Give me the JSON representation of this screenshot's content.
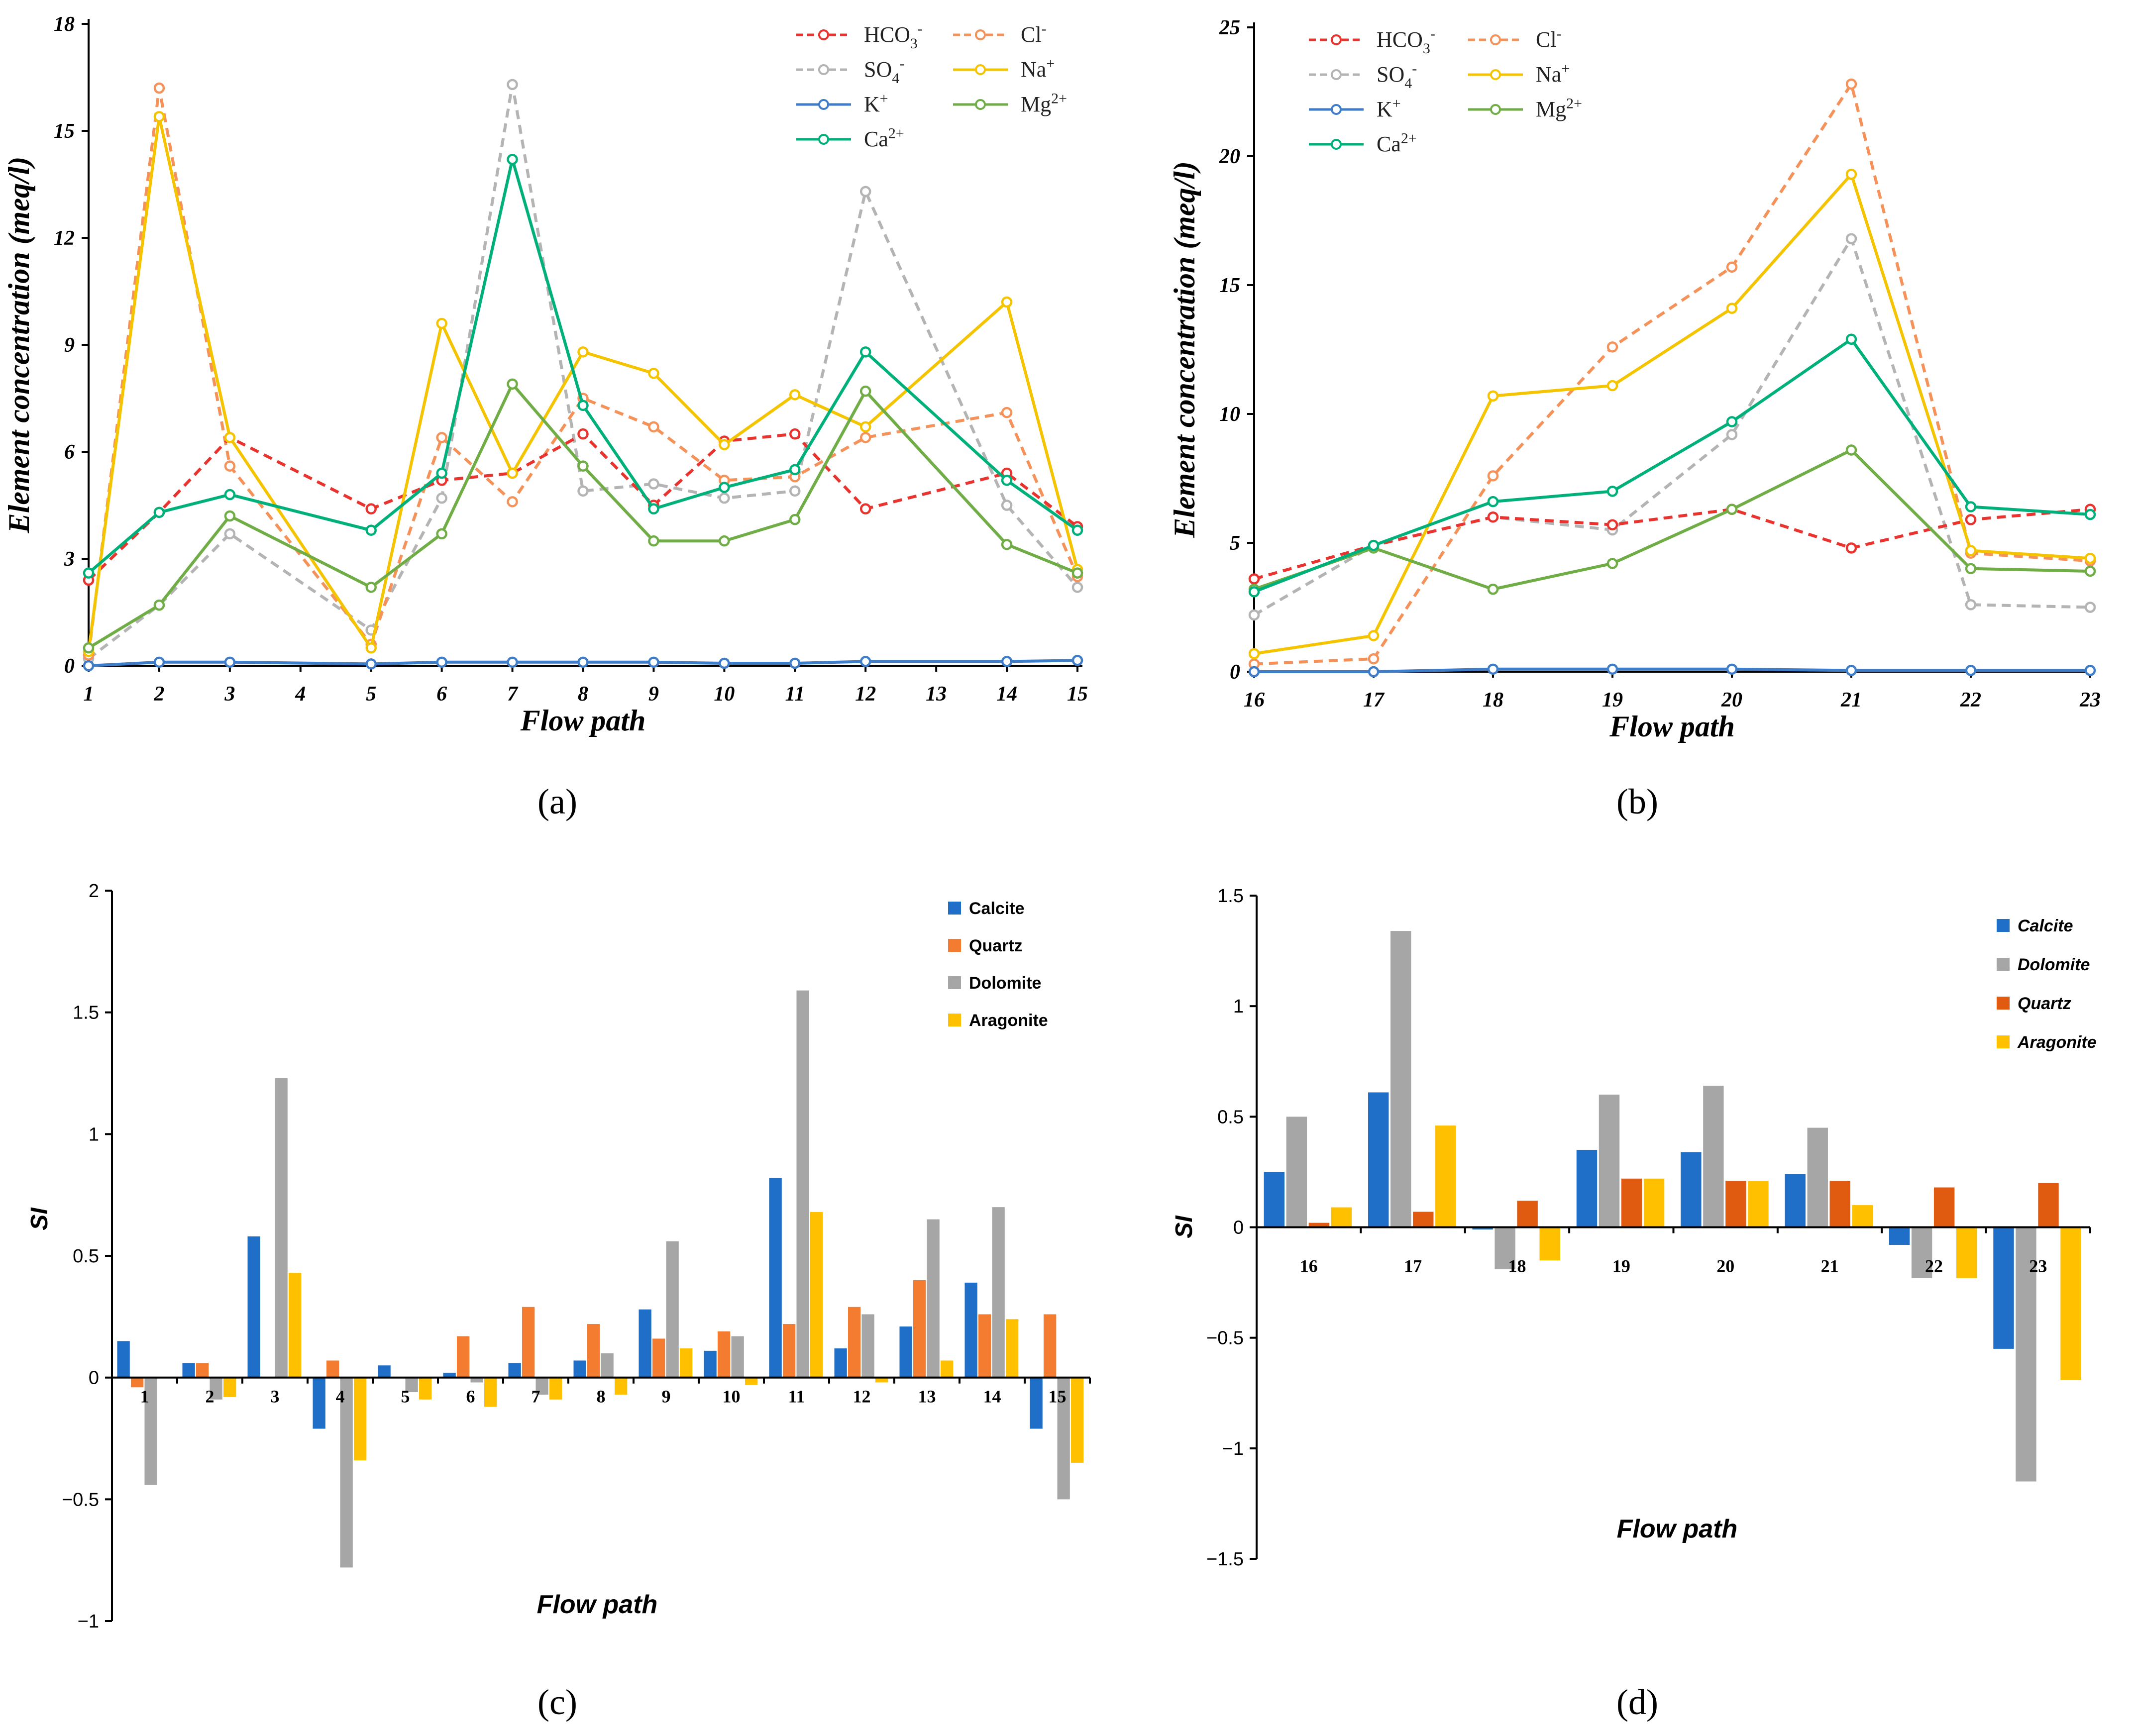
{
  "chart_data": [
    {
      "type": "line",
      "panel": "(a)",
      "xlabel": "Flow path",
      "ylabel": "Element concentration (meq/l)",
      "x": [
        1,
        2,
        3,
        5,
        6,
        7,
        8,
        9,
        10,
        11,
        12,
        14,
        15
      ],
      "x_ticks": [
        "1",
        "2",
        "3",
        "4",
        "5",
        "6",
        "7",
        "8",
        "9",
        "10",
        "11",
        "12",
        "13",
        "14",
        "15"
      ],
      "ylim": [
        0,
        18
      ],
      "y_ticks": [
        "0",
        "3",
        "6",
        "9",
        "12",
        "15",
        "18"
      ],
      "legend_position": "top-right",
      "series": [
        {
          "name": "HCO3-",
          "legend_base": "HCO",
          "legend_sub": "3",
          "legend_sup": "-",
          "color": "#e8332e",
          "dashed": true,
          "values": [
            2.4,
            4.3,
            6.4,
            4.4,
            5.2,
            5.4,
            6.5,
            4.5,
            6.3,
            6.5,
            4.4,
            5.4,
            3.9
          ]
        },
        {
          "name": "Cl-",
          "legend_base": "Cl",
          "legend_sub": "",
          "legend_sup": "-",
          "color": "#f4925a",
          "dashed": true,
          "values": [
            0.3,
            16.2,
            5.6,
            0.6,
            6.4,
            4.6,
            7.5,
            6.7,
            5.2,
            5.3,
            6.4,
            7.1,
            2.5
          ]
        },
        {
          "name": "SO4-",
          "legend_base": "SO",
          "legend_sub": "4",
          "legend_sup": "-",
          "color": "#b4b4b4",
          "dashed": true,
          "values": [
            0.2,
            1.7,
            3.7,
            1.0,
            4.7,
            16.3,
            4.9,
            5.1,
            4.7,
            4.9,
            13.3,
            4.5,
            2.2
          ]
        },
        {
          "name": "Na+",
          "legend_base": "Na",
          "legend_sub": "",
          "legend_sup": "+",
          "color": "#f5c400",
          "dashed": false,
          "values": [
            0.4,
            15.4,
            6.4,
            0.5,
            9.6,
            5.4,
            8.8,
            8.2,
            6.2,
            7.6,
            6.7,
            10.2,
            2.7
          ]
        },
        {
          "name": "K+",
          "legend_base": "K",
          "legend_sub": "",
          "legend_sup": "+",
          "color": "#3f7dc8",
          "dashed": false,
          "values": [
            0.0,
            0.1,
            0.1,
            0.05,
            0.1,
            0.1,
            0.1,
            0.1,
            0.07,
            0.07,
            0.12,
            0.12,
            0.15
          ]
        },
        {
          "name": "Mg2+",
          "legend_base": "Mg",
          "legend_sub": "",
          "legend_sup": "2+",
          "color": "#70ad47",
          "dashed": false,
          "values": [
            0.5,
            1.7,
            4.2,
            2.2,
            3.7,
            7.9,
            5.6,
            3.5,
            3.5,
            4.1,
            7.7,
            3.4,
            2.6
          ]
        },
        {
          "name": "Ca2+",
          "legend_base": "Ca",
          "legend_sub": "",
          "legend_sup": "2+",
          "color": "#00b07a",
          "dashed": false,
          "values": [
            2.6,
            4.3,
            4.8,
            3.8,
            5.4,
            14.2,
            7.3,
            4.4,
            5.0,
            5.5,
            8.8,
            5.2,
            3.8
          ]
        }
      ]
    },
    {
      "type": "line",
      "panel": "(b)",
      "xlabel": "Flow path",
      "ylabel": "Element concentration (meq/l)",
      "x": [
        16,
        17,
        18,
        19,
        20,
        21,
        22,
        23
      ],
      "x_ticks": [
        "16",
        "17",
        "18",
        "19",
        "20",
        "21",
        "22",
        "23"
      ],
      "ylim": [
        0,
        25
      ],
      "y_ticks": [
        "0",
        "5",
        "10",
        "15",
        "20",
        "25"
      ],
      "legend_position": "top-left",
      "series": [
        {
          "name": "HCO3-",
          "legend_base": "HCO",
          "legend_sub": "3",
          "legend_sup": "-",
          "color": "#e8332e",
          "dashed": true,
          "values": [
            3.6,
            4.9,
            6.0,
            5.7,
            6.3,
            4.8,
            5.9,
            6.3
          ]
        },
        {
          "name": "Cl-",
          "legend_base": "Cl",
          "legend_sub": "",
          "legend_sup": "-",
          "color": "#f4925a",
          "dashed": true,
          "values": [
            0.3,
            0.5,
            7.6,
            12.6,
            15.7,
            22.8,
            4.6,
            4.3
          ]
        },
        {
          "name": "SO4-",
          "legend_base": "SO",
          "legend_sub": "4",
          "legend_sup": "-",
          "color": "#b4b4b4",
          "dashed": true,
          "values": [
            2.2,
            4.9,
            6.0,
            5.5,
            9.2,
            16.8,
            2.6,
            2.5
          ]
        },
        {
          "name": "Na+",
          "legend_base": "Na",
          "legend_sub": "",
          "legend_sup": "+",
          "color": "#f5c400",
          "dashed": false,
          "values": [
            0.7,
            1.4,
            10.7,
            11.1,
            14.1,
            19.3,
            4.7,
            4.4
          ]
        },
        {
          "name": "K+",
          "legend_base": "K",
          "legend_sub": "",
          "legend_sup": "+",
          "color": "#3f7dc8",
          "dashed": false,
          "values": [
            0.0,
            0.0,
            0.1,
            0.1,
            0.1,
            0.05,
            0.05,
            0.05
          ]
        },
        {
          "name": "Mg2+",
          "legend_base": "Mg",
          "legend_sub": "",
          "legend_sup": "2+",
          "color": "#70ad47",
          "dashed": false,
          "values": [
            3.2,
            4.8,
            3.2,
            4.2,
            6.3,
            8.6,
            4.0,
            3.9
          ]
        },
        {
          "name": "Ca2+",
          "legend_base": "Ca",
          "legend_sub": "",
          "legend_sup": "2+",
          "color": "#00b07a",
          "dashed": false,
          "values": [
            3.1,
            4.9,
            6.6,
            7.0,
            9.7,
            12.9,
            6.4,
            6.1
          ]
        }
      ]
    },
    {
      "type": "bar",
      "panel": "(c)",
      "xlabel": "Flow path",
      "ylabel": "SI",
      "categories": [
        "1",
        "2",
        "3",
        "4",
        "5",
        "6",
        "7",
        "8",
        "9",
        "10",
        "11",
        "12",
        "13",
        "14",
        "15"
      ],
      "ylim": [
        -1,
        2
      ],
      "y_ticks": [
        "−1",
        "−0.5",
        "0",
        "0.5",
        "1",
        "1.5",
        "2"
      ],
      "legend_position": "top-right",
      "series": [
        {
          "name": "Calcite",
          "color": "#1f6fc9",
          "values": [
            0.15,
            0.06,
            0.58,
            -0.21,
            0.05,
            0.02,
            0.06,
            0.07,
            0.28,
            0.11,
            0.82,
            0.12,
            0.21,
            0.39,
            -0.21
          ]
        },
        {
          "name": "Quartz",
          "color": "#f47c30",
          "values": [
            -0.04,
            0.06,
            0.0,
            0.07,
            0.0,
            0.17,
            0.29,
            0.22,
            0.16,
            0.19,
            0.22,
            0.29,
            0.4,
            0.26,
            0.26
          ]
        },
        {
          "name": "Dolomite",
          "color": "#a6a6a6",
          "values": [
            -0.44,
            -0.09,
            1.23,
            -0.78,
            -0.06,
            -0.02,
            -0.07,
            0.1,
            0.56,
            0.17,
            1.59,
            0.26,
            0.65,
            0.7,
            -0.5
          ]
        },
        {
          "name": "Aragonite",
          "color": "#ffc000",
          "values": [
            0.0,
            -0.08,
            0.43,
            -0.34,
            -0.09,
            -0.12,
            -0.09,
            -0.07,
            0.12,
            -0.03,
            0.68,
            -0.02,
            0.07,
            0.24,
            -0.35
          ]
        }
      ]
    },
    {
      "type": "bar",
      "panel": "(d)",
      "xlabel": "Flow path",
      "ylabel": "SI",
      "categories": [
        "16",
        "17",
        "18",
        "19",
        "20",
        "21",
        "22",
        "23"
      ],
      "ylim": [
        -1.5,
        1.5
      ],
      "y_ticks": [
        "−1.5",
        "−1",
        "−0.5",
        "0",
        "0.5",
        "1",
        "1.5"
      ],
      "legend_position": "top-right",
      "series": [
        {
          "name": "Calcite",
          "color": "#1f6fc9",
          "values": [
            0.25,
            0.61,
            -0.01,
            0.35,
            0.34,
            0.24,
            -0.08,
            -0.55
          ]
        },
        {
          "name": "Dolomite",
          "color": "#a6a6a6",
          "values": [
            0.5,
            1.34,
            -0.19,
            0.6,
            0.64,
            0.45,
            -0.23,
            -1.15
          ]
        },
        {
          "name": "Quartz",
          "color": "#e05a10",
          "values": [
            0.02,
            0.07,
            0.12,
            0.22,
            0.21,
            0.21,
            0.18,
            0.2
          ]
        },
        {
          "name": "Aragonite",
          "color": "#ffc000",
          "values": [
            0.09,
            0.46,
            -0.15,
            0.22,
            0.21,
            0.1,
            -0.23,
            -0.69
          ]
        }
      ]
    }
  ]
}
